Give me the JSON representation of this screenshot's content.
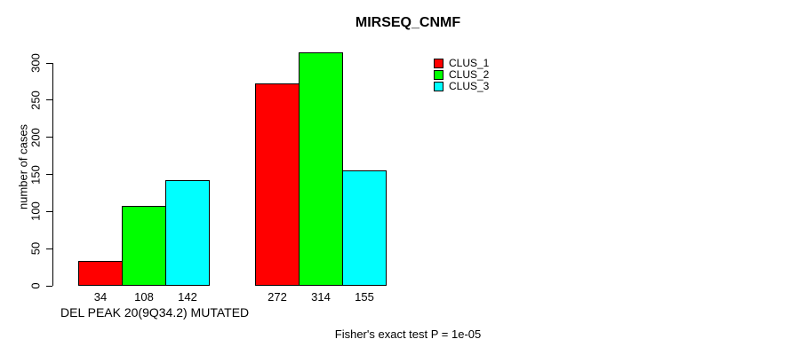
{
  "chart_data": {
    "type": "bar",
    "title": "MIRSEQ_CNMF",
    "ylabel": "number of cases",
    "xlabel": "DEL PEAK 20(9Q34.2) MUTATED",
    "footnote": "Fisher's exact test P = 1e-05",
    "ylim": [
      0,
      300
    ],
    "yticks": [
      0,
      50,
      100,
      150,
      200,
      250,
      300
    ],
    "grid": false,
    "legend_position": "top-right",
    "series": [
      {
        "name": "CLUS_1",
        "color": "#ff0000",
        "values": [
          34,
          272
        ]
      },
      {
        "name": "CLUS_2",
        "color": "#00ff00",
        "values": [
          108,
          314
        ]
      },
      {
        "name": "CLUS_3",
        "color": "#00ffff",
        "values": [
          142,
          155
        ]
      }
    ],
    "bar_labels": [
      [
        34,
        108,
        142
      ],
      [
        272,
        314,
        155
      ]
    ]
  }
}
